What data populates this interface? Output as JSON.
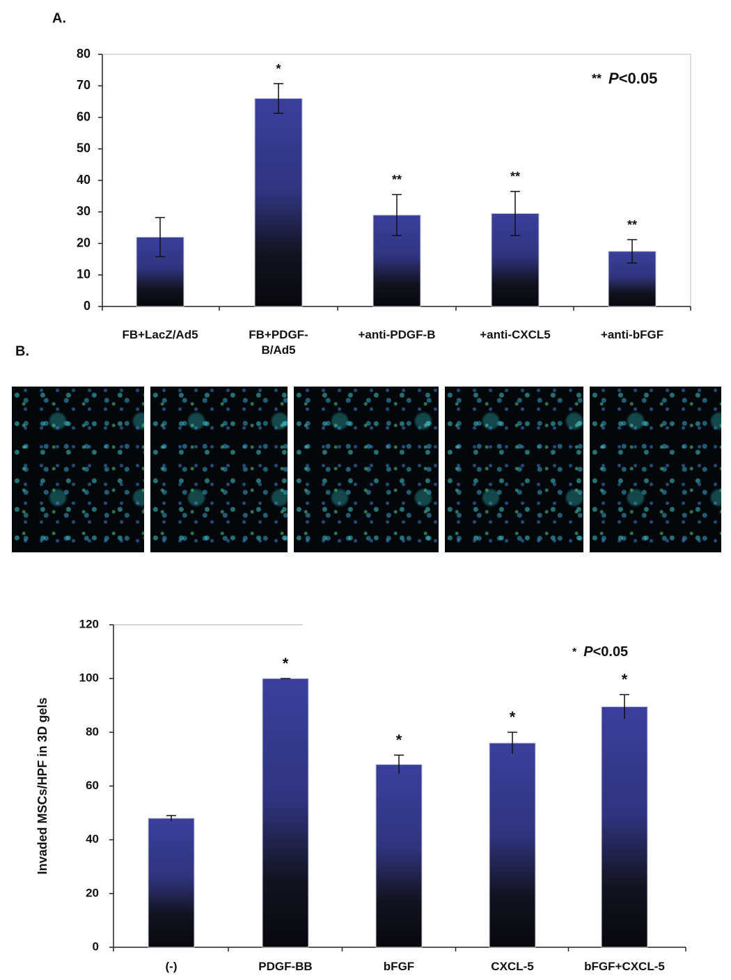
{
  "chart_data": [
    {
      "type": "bar",
      "panel": "A.",
      "categories": [
        "FB+LacZ/Ad5",
        "FB+PDGF-B/Ad5",
        "+anti-PDGF-B",
        "+anti-CXCL5",
        "+anti-bFGF"
      ],
      "values": [
        22,
        66,
        29,
        29.5,
        17.5
      ],
      "errors": [
        6.2,
        4.7,
        6.5,
        7,
        3.7
      ],
      "significance": [
        null,
        "*",
        "**",
        "**",
        "**"
      ],
      "annotation": {
        "marker": "**",
        "italic": "P",
        "text": "<0.05"
      },
      "color": "#3b3f9c",
      "ylim": [
        0,
        80
      ],
      "yticks": [
        0,
        10,
        20,
        30,
        40,
        50,
        60,
        70,
        80
      ]
    },
    {
      "type": "bar",
      "panel": "B.",
      "ylabel": "Invaded MSCs/HPF in 3D gels",
      "categories": [
        "(-)",
        "PDGF-BB",
        "bFGF",
        "CXCL-5",
        "bFGF+CXCL-5"
      ],
      "values": [
        48,
        100,
        68,
        76,
        89.5
      ],
      "errors": [
        1,
        0,
        3.5,
        4,
        4.5
      ],
      "significance": [
        null,
        "*",
        "*",
        "*",
        "*"
      ],
      "annotation": {
        "marker": "*",
        "italic": "P",
        "text": "<0.05"
      },
      "color": "#3b3f9c",
      "ylim": [
        0,
        120
      ],
      "yticks": [
        0,
        20,
        40,
        60,
        80,
        100,
        120
      ]
    }
  ]
}
